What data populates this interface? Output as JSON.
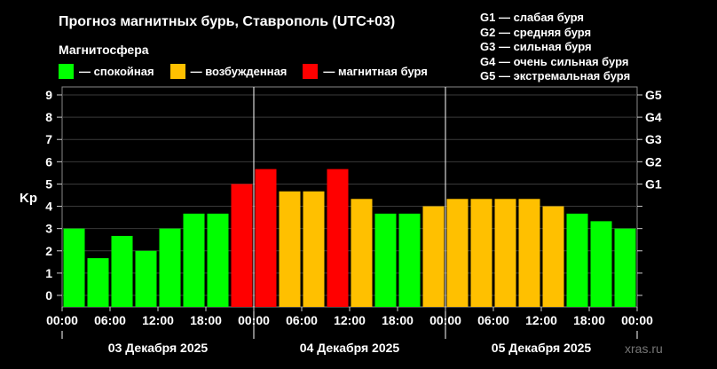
{
  "title": "Прогноз магнитных бурь, Ставрополь (UTC+03)",
  "magnetosphere_label": "Магнитосфера",
  "legend": [
    {
      "label": "— спокойная",
      "color": "#00ff00"
    },
    {
      "label": "— возбужденная",
      "color": "#ffc000"
    },
    {
      "label": "— магнитная буря",
      "color": "#ff0000"
    }
  ],
  "storm_levels": [
    "G1 — слабая буря",
    "G2 — средняя буря",
    "G3 — сильная буря",
    "G4 — очень сильная буря",
    "G5 — экстремальная буря"
  ],
  "watermark": "xras.ru",
  "chart_data": {
    "type": "bar",
    "ylabel": "Kp",
    "ylim": [
      0,
      9
    ],
    "yticks": [
      "0",
      "1",
      "2",
      "3",
      "4",
      "5",
      "6",
      "7",
      "8",
      "9"
    ],
    "right_ticks": [
      {
        "label": "G1",
        "value": 5
      },
      {
        "label": "G2",
        "value": 6
      },
      {
        "label": "G3",
        "value": 7
      },
      {
        "label": "G4",
        "value": 8
      },
      {
        "label": "G5",
        "value": 9
      }
    ],
    "xtick_labels": [
      "00:00",
      "06:00",
      "12:00",
      "18:00",
      "00:00",
      "06:00",
      "12:00",
      "18:00",
      "00:00",
      "06:00",
      "12:00",
      "18:00",
      "00:00"
    ],
    "days": [
      "03 Декабря 2025",
      "04 Декабря 2025",
      "05 Декабря 2025"
    ],
    "colors": {
      "quiet": "#00ff00",
      "active": "#ffc000",
      "storm": "#ff0000"
    },
    "values": [
      3.0,
      1.67,
      2.67,
      2.0,
      3.0,
      3.67,
      3.67,
      5.0,
      5.67,
      4.67,
      4.67,
      5.67,
      4.33,
      3.67,
      3.67,
      4.0,
      4.33,
      4.33,
      4.33,
      4.33,
      4.0,
      3.67,
      3.33,
      3.0
    ],
    "levels": [
      "quiet",
      "quiet",
      "quiet",
      "quiet",
      "quiet",
      "quiet",
      "quiet",
      "storm",
      "storm",
      "active",
      "active",
      "storm",
      "active",
      "quiet",
      "quiet",
      "active",
      "active",
      "active",
      "active",
      "active",
      "active",
      "quiet",
      "quiet",
      "quiet"
    ],
    "grid": true
  }
}
